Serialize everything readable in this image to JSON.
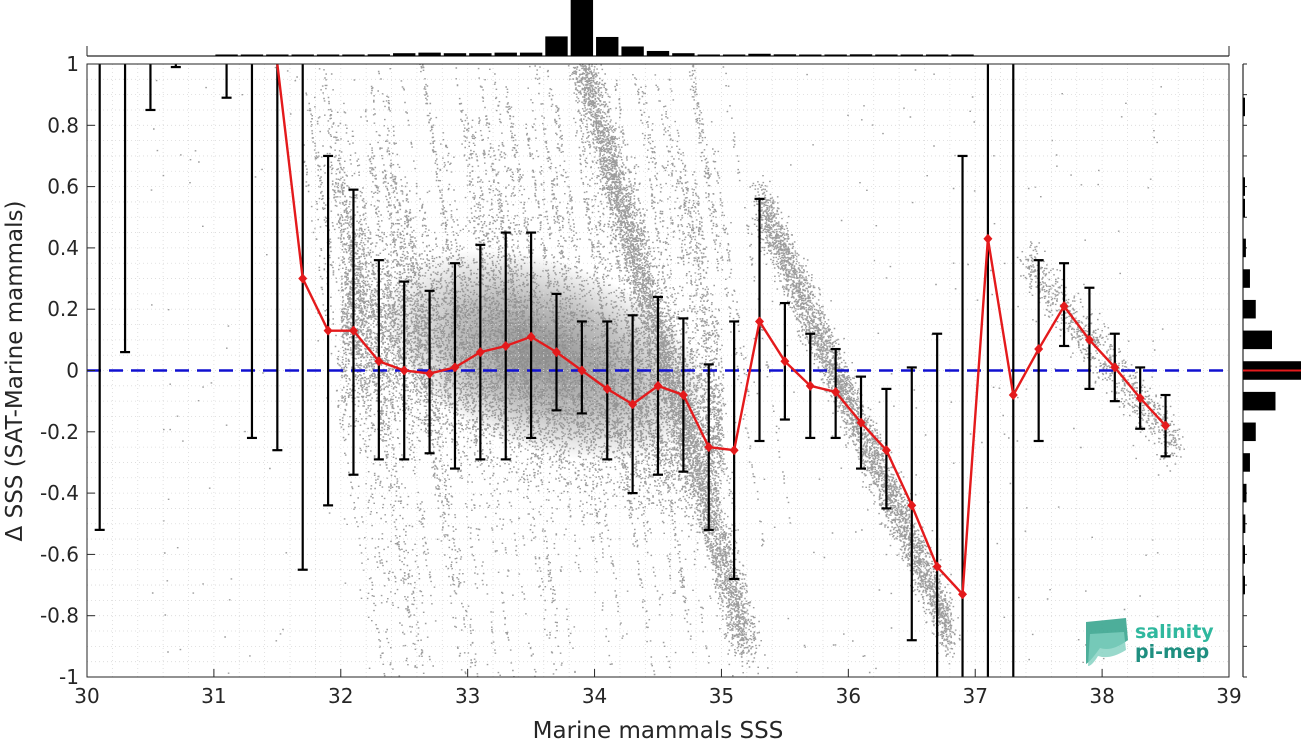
{
  "chart_data": {
    "type": "scatter",
    "xlabel": "Marine mammals SSS",
    "ylabel": "Δ SSS (SAT-Marine mammals)",
    "xlim": [
      30,
      39
    ],
    "ylim": [
      -1,
      1
    ],
    "x_ticks": [
      "30",
      "31",
      "32",
      "33",
      "34",
      "35",
      "36",
      "37",
      "38",
      "39"
    ],
    "y_ticks": [
      "-1",
      "-0.8",
      "-0.6",
      "-0.4",
      "-0.2",
      "0",
      "0.2",
      "0.4",
      "0.6",
      "0.8",
      "1"
    ],
    "grid": "dotted",
    "reference_line": {
      "y": 0,
      "style": "dashed",
      "color": "#1010d0"
    },
    "scatter_color": "#8c8c8c",
    "mean_color": "#e41a1c",
    "errorbar_color": "#000000",
    "binned_stats": [
      {
        "x": 30.1,
        "y_low": -0.52,
        "y_high": 1.0
      },
      {
        "x": 30.3,
        "y_low": 0.06,
        "y_high": 1.0
      },
      {
        "x": 30.5,
        "y_low": 0.85,
        "y_high": 1.0
      },
      {
        "x": 30.7,
        "y_low": 0.99,
        "y_high": 1.0
      },
      {
        "x": 31.1,
        "y_low": 0.89,
        "y_high": 1.0
      },
      {
        "x": 31.3,
        "y_low": -0.22,
        "y_high": 1.0
      },
      {
        "x": 31.5,
        "y_low": -0.26,
        "y_high": 1.0
      },
      {
        "x": 31.7,
        "mean": 0.3,
        "y_low": -0.65,
        "y_high": 1.0
      },
      {
        "x": 31.9,
        "mean": 0.13,
        "y_low": -0.44,
        "y_high": 0.7
      },
      {
        "x": 32.1,
        "mean": 0.13,
        "y_low": -0.34,
        "y_high": 0.59
      },
      {
        "x": 32.3,
        "mean": 0.03,
        "y_low": -0.29,
        "y_high": 0.36
      },
      {
        "x": 32.5,
        "mean": 0.0,
        "y_low": -0.29,
        "y_high": 0.29
      },
      {
        "x": 32.7,
        "mean": -0.01,
        "y_low": -0.27,
        "y_high": 0.26
      },
      {
        "x": 32.9,
        "mean": 0.01,
        "y_low": -0.32,
        "y_high": 0.35
      },
      {
        "x": 33.1,
        "mean": 0.06,
        "y_low": -0.29,
        "y_high": 0.41
      },
      {
        "x": 33.3,
        "mean": 0.08,
        "y_low": -0.29,
        "y_high": 0.45
      },
      {
        "x": 33.5,
        "mean": 0.11,
        "y_low": -0.22,
        "y_high": 0.45
      },
      {
        "x": 33.7,
        "mean": 0.06,
        "y_low": -0.13,
        "y_high": 0.25
      },
      {
        "x": 33.9,
        "mean": 0.0,
        "y_low": -0.14,
        "y_high": 0.16
      },
      {
        "x": 34.1,
        "mean": -0.06,
        "y_low": -0.29,
        "y_high": 0.16
      },
      {
        "x": 34.3,
        "mean": -0.11,
        "y_low": -0.4,
        "y_high": 0.18
      },
      {
        "x": 34.5,
        "mean": -0.05,
        "y_low": -0.34,
        "y_high": 0.24
      },
      {
        "x": 34.7,
        "mean": -0.08,
        "y_low": -0.33,
        "y_high": 0.17
      },
      {
        "x": 34.9,
        "mean": -0.25,
        "y_low": -0.52,
        "y_high": 0.02
      },
      {
        "x": 35.1,
        "mean": -0.26,
        "y_low": -0.68,
        "y_high": 0.16
      },
      {
        "x": 35.3,
        "mean": 0.16,
        "y_low": -0.23,
        "y_high": 0.56
      },
      {
        "x": 35.5,
        "mean": 0.03,
        "y_low": -0.16,
        "y_high": 0.22
      },
      {
        "x": 35.7,
        "mean": -0.05,
        "y_low": -0.22,
        "y_high": 0.12
      },
      {
        "x": 35.9,
        "mean": -0.07,
        "y_low": -0.22,
        "y_high": 0.07
      },
      {
        "x": 36.1,
        "mean": -0.17,
        "y_low": -0.32,
        "y_high": -0.02
      },
      {
        "x": 36.3,
        "mean": -0.26,
        "y_low": -0.45,
        "y_high": -0.06
      },
      {
        "x": 36.5,
        "mean": -0.44,
        "y_low": -0.88,
        "y_high": 0.01
      },
      {
        "x": 36.7,
        "mean": -0.64,
        "y_low": -1.0,
        "y_high": 0.12
      },
      {
        "x": 36.9,
        "mean": -0.73,
        "y_low": -1.0,
        "y_high": 0.7
      },
      {
        "x": 37.1,
        "mean": 0.43,
        "y_low": -1.0,
        "y_high": 1.0
      },
      {
        "x": 37.3,
        "mean": -0.08,
        "y_low": -1.0,
        "y_high": 1.0
      },
      {
        "x": 37.5,
        "mean": 0.07,
        "y_low": -0.23,
        "y_high": 0.36
      },
      {
        "x": 37.7,
        "mean": 0.21,
        "y_low": 0.08,
        "y_high": 0.35
      },
      {
        "x": 37.9,
        "mean": 0.1,
        "y_low": -0.06,
        "y_high": 0.27
      },
      {
        "x": 38.1,
        "mean": 0.01,
        "y_low": -0.1,
        "y_high": 0.12
      },
      {
        "x": 38.3,
        "mean": -0.09,
        "y_low": -0.19,
        "y_high": 0.01
      },
      {
        "x": 38.5,
        "mean": -0.18,
        "y_low": -0.28,
        "y_high": -0.08
      }
    ],
    "top_histogram": {
      "bin_width": 0.2,
      "bins": [
        {
          "x": 31.1,
          "h": 0.01
        },
        {
          "x": 31.3,
          "h": 0.01
        },
        {
          "x": 31.5,
          "h": 0.01
        },
        {
          "x": 31.7,
          "h": 0.01
        },
        {
          "x": 31.9,
          "h": 0.01
        },
        {
          "x": 32.1,
          "h": 0.02
        },
        {
          "x": 32.3,
          "h": 0.03
        },
        {
          "x": 32.5,
          "h": 0.05
        },
        {
          "x": 32.7,
          "h": 0.06
        },
        {
          "x": 32.9,
          "h": 0.05
        },
        {
          "x": 33.1,
          "h": 0.05
        },
        {
          "x": 33.3,
          "h": 0.06
        },
        {
          "x": 33.5,
          "h": 0.06
        },
        {
          "x": 33.7,
          "h": 0.35
        },
        {
          "x": 33.9,
          "h": 1.0
        },
        {
          "x": 34.1,
          "h": 0.34
        },
        {
          "x": 34.3,
          "h": 0.17
        },
        {
          "x": 34.5,
          "h": 0.09
        },
        {
          "x": 34.7,
          "h": 0.05
        },
        {
          "x": 34.9,
          "h": 0.02
        },
        {
          "x": 35.1,
          "h": 0.02
        },
        {
          "x": 35.3,
          "h": 0.04
        },
        {
          "x": 35.5,
          "h": 0.03
        },
        {
          "x": 35.7,
          "h": 0.02
        },
        {
          "x": 35.9,
          "h": 0.02
        },
        {
          "x": 36.1,
          "h": 0.03
        },
        {
          "x": 36.3,
          "h": 0.01
        },
        {
          "x": 36.5,
          "h": 0.01
        },
        {
          "x": 36.7,
          "h": 0.01
        },
        {
          "x": 36.9,
          "h": 0.01
        }
      ]
    },
    "right_histogram": {
      "bin_width": 0.067,
      "median_line_color": "#e41a1c",
      "bins": [
        {
          "y": 0.86,
          "h": 0.03
        },
        {
          "y": 0.6,
          "h": 0.03
        },
        {
          "y": 0.53,
          "h": 0.03
        },
        {
          "y": 0.4,
          "h": 0.05
        },
        {
          "y": 0.3,
          "h": 0.12
        },
        {
          "y": 0.2,
          "h": 0.22
        },
        {
          "y": 0.1,
          "h": 0.5
        },
        {
          "y": 0.0,
          "h": 1.0
        },
        {
          "y": -0.1,
          "h": 0.56
        },
        {
          "y": -0.2,
          "h": 0.22
        },
        {
          "y": -0.3,
          "h": 0.12
        },
        {
          "y": -0.4,
          "h": 0.06
        },
        {
          "y": -0.5,
          "h": 0.04
        },
        {
          "y": -0.6,
          "h": 0.03
        },
        {
          "y": -0.7,
          "h": 0.02
        }
      ]
    }
  },
  "logo": {
    "line1": "salinity",
    "line2": "pi-mep"
  }
}
